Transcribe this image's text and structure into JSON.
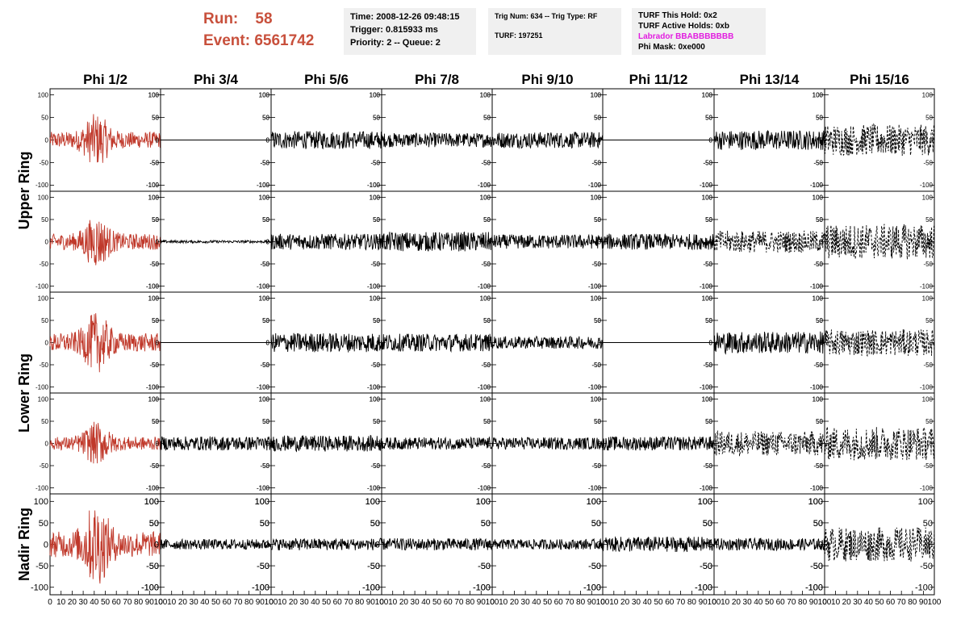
{
  "header": {
    "run_label": "Run:",
    "run_value": "58",
    "event_label": "Event:",
    "event_value": "6561742",
    "time": "Time: 2008-12-26 09:48:15",
    "trigger": "Trigger: 0.815933 ms",
    "priority": "Priority: 2 -- Queue: 2",
    "trig_num": "Trig Num: 634 -- Trig Type: RF",
    "turf": "TURF: 197251",
    "turf_hold": "TURF This Hold: 0x2",
    "turf_active": "TURF Active Holds: 0xb",
    "labrador": "Labrador BBABBBBBBB",
    "phi_mask": "Phi Mask: 0xe000"
  },
  "colors": {
    "highlight": "#c0392b",
    "trace": "#000000",
    "run_text": "#c8503c",
    "labrador": "#e21ce0"
  },
  "chart_data": {
    "type": "line",
    "columns": [
      "Phi 1/2",
      "Phi 3/4",
      "Phi 5/6",
      "Phi 7/8",
      "Phi 9/10",
      "Phi 11/12",
      "Phi 13/14",
      "Phi 15/16"
    ],
    "rows": [
      "Upper Ring",
      "Upper Ring",
      "Lower Ring",
      "Lower Ring",
      "Nadir Ring"
    ],
    "ring_labels": [
      "Upper Ring",
      "Lower Ring",
      "Nadir Ring"
    ],
    "ylim": [
      -110,
      110
    ],
    "yticks": [
      100,
      50,
      0,
      -50,
      -100
    ],
    "xlim": [
      0,
      100
    ],
    "xticks": [
      0,
      10,
      20,
      30,
      40,
      50,
      60,
      70,
      80,
      90,
      100
    ],
    "amplitudes": [
      [
        30,
        0,
        20,
        16,
        18,
        0,
        22,
        35
      ],
      [
        30,
        3,
        18,
        22,
        16,
        18,
        25,
        40
      ],
      [
        35,
        0,
        22,
        20,
        14,
        0,
        25,
        30
      ],
      [
        25,
        16,
        18,
        14,
        14,
        16,
        28,
        38
      ],
      [
        50,
        12,
        14,
        14,
        12,
        18,
        14,
        40
      ]
    ],
    "highlighted_column": 0,
    "dashed_columns": [
      [
        7
      ],
      [
        6,
        7
      ],
      [
        7
      ],
      [
        6,
        7
      ],
      [
        7
      ]
    ]
  }
}
